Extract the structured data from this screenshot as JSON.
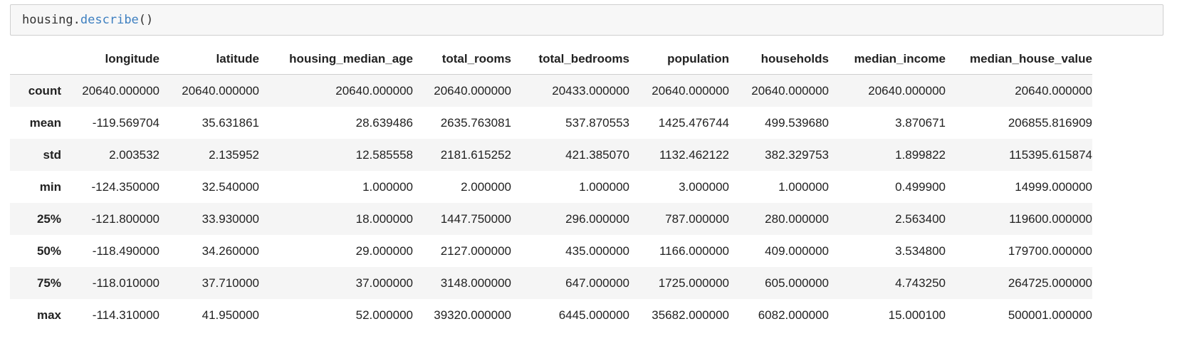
{
  "code_cell": {
    "object": "housing",
    "dot": ".",
    "method": "describe",
    "parens": "()"
  },
  "table": {
    "columns": [
      "longitude",
      "latitude",
      "housing_median_age",
      "total_rooms",
      "total_bedrooms",
      "population",
      "households",
      "median_income",
      "median_house_value"
    ],
    "rows": [
      {
        "index": "count",
        "values": [
          "20640.000000",
          "20640.000000",
          "20640.000000",
          "20640.000000",
          "20433.000000",
          "20640.000000",
          "20640.000000",
          "20640.000000",
          "20640.000000"
        ]
      },
      {
        "index": "mean",
        "values": [
          "-119.569704",
          "35.631861",
          "28.639486",
          "2635.763081",
          "537.870553",
          "1425.476744",
          "499.539680",
          "3.870671",
          "206855.816909"
        ]
      },
      {
        "index": "std",
        "values": [
          "2.003532",
          "2.135952",
          "12.585558",
          "2181.615252",
          "421.385070",
          "1132.462122",
          "382.329753",
          "1.899822",
          "115395.615874"
        ]
      },
      {
        "index": "min",
        "values": [
          "-124.350000",
          "32.540000",
          "1.000000",
          "2.000000",
          "1.000000",
          "3.000000",
          "1.000000",
          "0.499900",
          "14999.000000"
        ]
      },
      {
        "index": "25%",
        "values": [
          "-121.800000",
          "33.930000",
          "18.000000",
          "1447.750000",
          "296.000000",
          "787.000000",
          "280.000000",
          "2.563400",
          "119600.000000"
        ]
      },
      {
        "index": "50%",
        "values": [
          "-118.490000",
          "34.260000",
          "29.000000",
          "2127.000000",
          "435.000000",
          "1166.000000",
          "409.000000",
          "3.534800",
          "179700.000000"
        ]
      },
      {
        "index": "75%",
        "values": [
          "-118.010000",
          "37.710000",
          "37.000000",
          "3148.000000",
          "647.000000",
          "1725.000000",
          "605.000000",
          "4.743250",
          "264725.000000"
        ]
      },
      {
        "index": "max",
        "values": [
          "-114.310000",
          "41.950000",
          "52.000000",
          "39320.000000",
          "6445.000000",
          "35682.000000",
          "6082.000000",
          "15.000100",
          "500001.000000"
        ]
      }
    ]
  }
}
